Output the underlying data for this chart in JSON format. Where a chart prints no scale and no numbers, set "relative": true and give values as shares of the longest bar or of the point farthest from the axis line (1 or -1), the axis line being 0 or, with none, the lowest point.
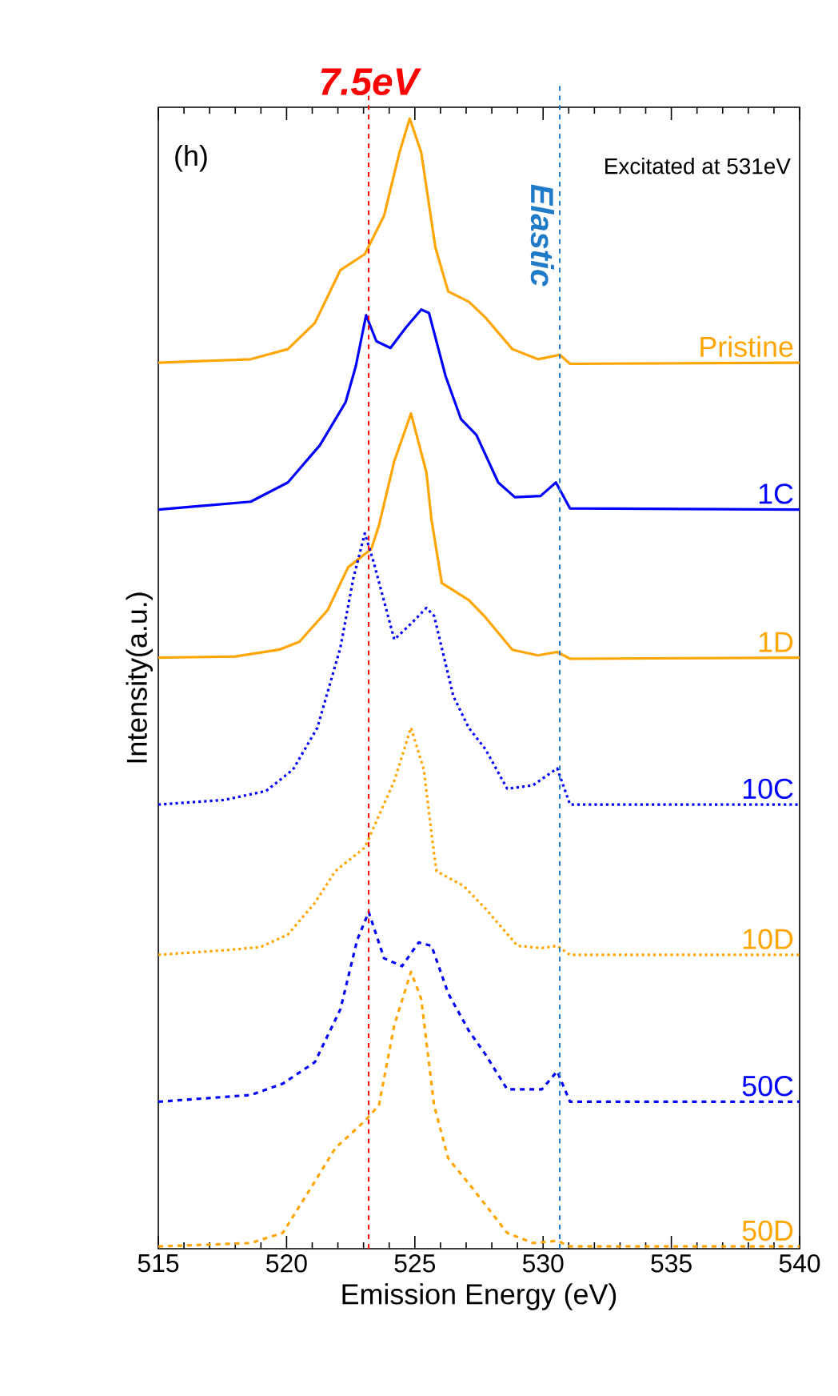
{
  "chart_data": {
    "type": "line",
    "relative": true,
    "xlabel": "Emission Energy (eV)",
    "ylabel": "Intensity(a.u.)",
    "xlim": [
      515,
      540
    ],
    "xticks": [
      515,
      520,
      525,
      530,
      535,
      540
    ],
    "grid": false,
    "annotations": [
      "(h)",
      "Excitated at 531eV"
    ],
    "ref_lines": [
      {
        "axis": "x",
        "value": 523.2,
        "label": "7.5eV",
        "color": "#ff0000",
        "line_style": "dashed"
      },
      {
        "axis": "x",
        "value": 530.65,
        "label": "Elastic",
        "color": "#1f7bc8",
        "line_style": "dashed"
      }
    ],
    "series": [
      {
        "name": "Pristine",
        "color": "#ffa500",
        "line_style": "solid",
        "x": [
          515,
          518.6,
          520.05,
          521.1,
          522.1,
          523.05,
          523.8,
          524.4,
          524.8,
          525.25,
          525.8,
          526.3,
          527.1,
          527.75,
          528.8,
          529.8,
          530.65,
          531.05,
          540
        ],
        "values": [
          0.784,
          0.787,
          0.796,
          0.819,
          0.866,
          0.88,
          0.914,
          0.97,
          1,
          0.97,
          0.886,
          0.847,
          0.838,
          0.824,
          0.796,
          0.787,
          0.791,
          0.783,
          0.784
        ]
      },
      {
        "name": "1C",
        "color": "#0000ff",
        "line_style": "solid",
        "x": [
          515,
          518.6,
          520.05,
          521.3,
          522.3,
          522.7,
          523.1,
          523.5,
          524.05,
          524.65,
          525.25,
          525.55,
          526.2,
          526.8,
          527.4,
          528.25,
          528.9,
          529.9,
          530.5,
          531.05,
          540
        ],
        "values": [
          0.654,
          0.661,
          0.678,
          0.711,
          0.749,
          0.781,
          0.826,
          0.803,
          0.797,
          0.815,
          0.831,
          0.828,
          0.772,
          0.734,
          0.72,
          0.678,
          0.665,
          0.666,
          0.678,
          0.655,
          0.654
        ]
      },
      {
        "name": "1D",
        "color": "#ffa500",
        "line_style": "solid",
        "x": [
          515,
          518.0,
          519.7,
          520.5,
          521.6,
          522.4,
          523.3,
          523.6,
          524.2,
          524.85,
          525.45,
          525.65,
          526.05,
          527.1,
          527.7,
          528.8,
          529.8,
          530.55,
          531.05,
          540
        ],
        "values": [
          0.523,
          0.524,
          0.53,
          0.537,
          0.565,
          0.603,
          0.619,
          0.64,
          0.697,
          0.739,
          0.687,
          0.645,
          0.589,
          0.574,
          0.56,
          0.53,
          0.525,
          0.528,
          0.522,
          0.523
        ]
      },
      {
        "name": "10C",
        "color": "#0000ff",
        "line_style": "dotted",
        "x": [
          515,
          517.55,
          519.2,
          520.25,
          521.2,
          522.1,
          522.6,
          523.05,
          523.4,
          524.2,
          524.85,
          525.45,
          525.75,
          526.5,
          527.1,
          527.75,
          528.6,
          529.6,
          530.55,
          531.05,
          540
        ],
        "values": [
          0.393,
          0.397,
          0.405,
          0.424,
          0.461,
          0.532,
          0.593,
          0.633,
          0.607,
          0.539,
          0.553,
          0.567,
          0.56,
          0.489,
          0.461,
          0.442,
          0.407,
          0.41,
          0.425,
          0.393,
          0.393
        ]
      },
      {
        "name": "10D",
        "color": "#ffa500",
        "line_style": "dotted",
        "x": [
          515,
          517.55,
          519.0,
          520.05,
          521.1,
          521.9,
          523.05,
          524.2,
          524.85,
          525.35,
          525.75,
          525.85,
          526.9,
          527.75,
          529.0,
          529.95,
          530.55,
          531.05,
          540
        ],
        "values": [
          0.26,
          0.264,
          0.267,
          0.278,
          0.306,
          0.334,
          0.355,
          0.414,
          0.461,
          0.424,
          0.349,
          0.334,
          0.321,
          0.301,
          0.268,
          0.266,
          0.268,
          0.26,
          0.26
        ]
      },
      {
        "name": "50C",
        "color": "#0000ff",
        "line_style": "dashed",
        "x": [
          515,
          518.6,
          519.85,
          521.1,
          522.1,
          522.75,
          523.2,
          523.8,
          524.5,
          525.15,
          525.65,
          526.3,
          527.1,
          527.75,
          528.6,
          529.95,
          530.55,
          531.05,
          540
        ],
        "values": [
          0.13,
          0.136,
          0.146,
          0.165,
          0.212,
          0.273,
          0.298,
          0.257,
          0.25,
          0.271,
          0.268,
          0.226,
          0.193,
          0.172,
          0.141,
          0.141,
          0.157,
          0.13,
          0.13
        ]
      },
      {
        "name": "50D",
        "color": "#ffa500",
        "line_style": "dashed",
        "x": [
          515,
          518.6,
          519.85,
          520.9,
          521.9,
          523.05,
          523.6,
          524.2,
          524.85,
          525.25,
          525.75,
          526.3,
          527.3,
          528.6,
          529.6,
          530.55,
          531.05,
          540
        ],
        "values": [
          0.002,
          0.005,
          0.014,
          0.052,
          0.089,
          0.113,
          0.127,
          0.198,
          0.245,
          0.221,
          0.127,
          0.08,
          0.052,
          0.014,
          0.005,
          0.007,
          0.002,
          0.002
        ]
      }
    ]
  }
}
